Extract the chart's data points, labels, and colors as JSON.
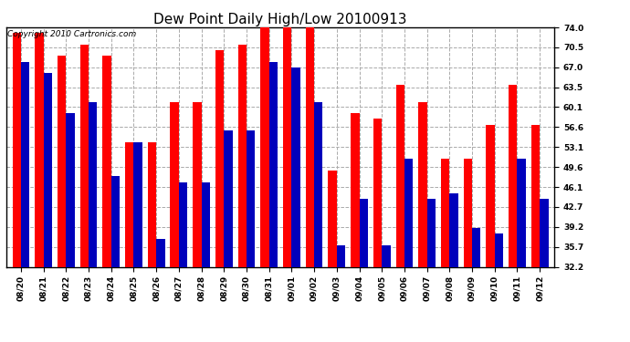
{
  "title": "Dew Point Daily High/Low 20100913",
  "copyright": "Copyright 2010 Cartronics.com",
  "dates": [
    "08/20",
    "08/21",
    "08/22",
    "08/23",
    "08/24",
    "08/25",
    "08/26",
    "08/27",
    "08/28",
    "08/29",
    "08/30",
    "08/31",
    "09/01",
    "09/02",
    "09/03",
    "09/04",
    "09/05",
    "09/06",
    "09/07",
    "09/08",
    "09/09",
    "09/10",
    "09/11",
    "09/12"
  ],
  "highs": [
    73,
    73,
    69,
    71,
    69,
    54,
    54,
    61,
    61,
    70,
    71,
    74,
    74,
    74,
    49,
    59,
    58,
    64,
    61,
    51,
    51,
    57,
    64,
    57
  ],
  "lows": [
    68,
    66,
    59,
    61,
    48,
    54,
    37,
    47,
    47,
    56,
    56,
    68,
    67,
    61,
    36,
    44,
    36,
    51,
    44,
    45,
    39,
    38,
    51,
    44
  ],
  "high_color": "#ff0000",
  "low_color": "#0000bb",
  "bg_color": "#ffffff",
  "plot_bg_color": "#ffffff",
  "grid_color": "#aaaaaa",
  "yticks": [
    32.2,
    35.7,
    39.2,
    42.7,
    46.1,
    49.6,
    53.1,
    56.6,
    60.1,
    63.5,
    67.0,
    70.5,
    74.0
  ],
  "ymin": 32.2,
  "ymax": 74.0,
  "bar_width": 0.38,
  "title_fontsize": 11,
  "tick_fontsize": 6.5,
  "copyright_fontsize": 6.5
}
